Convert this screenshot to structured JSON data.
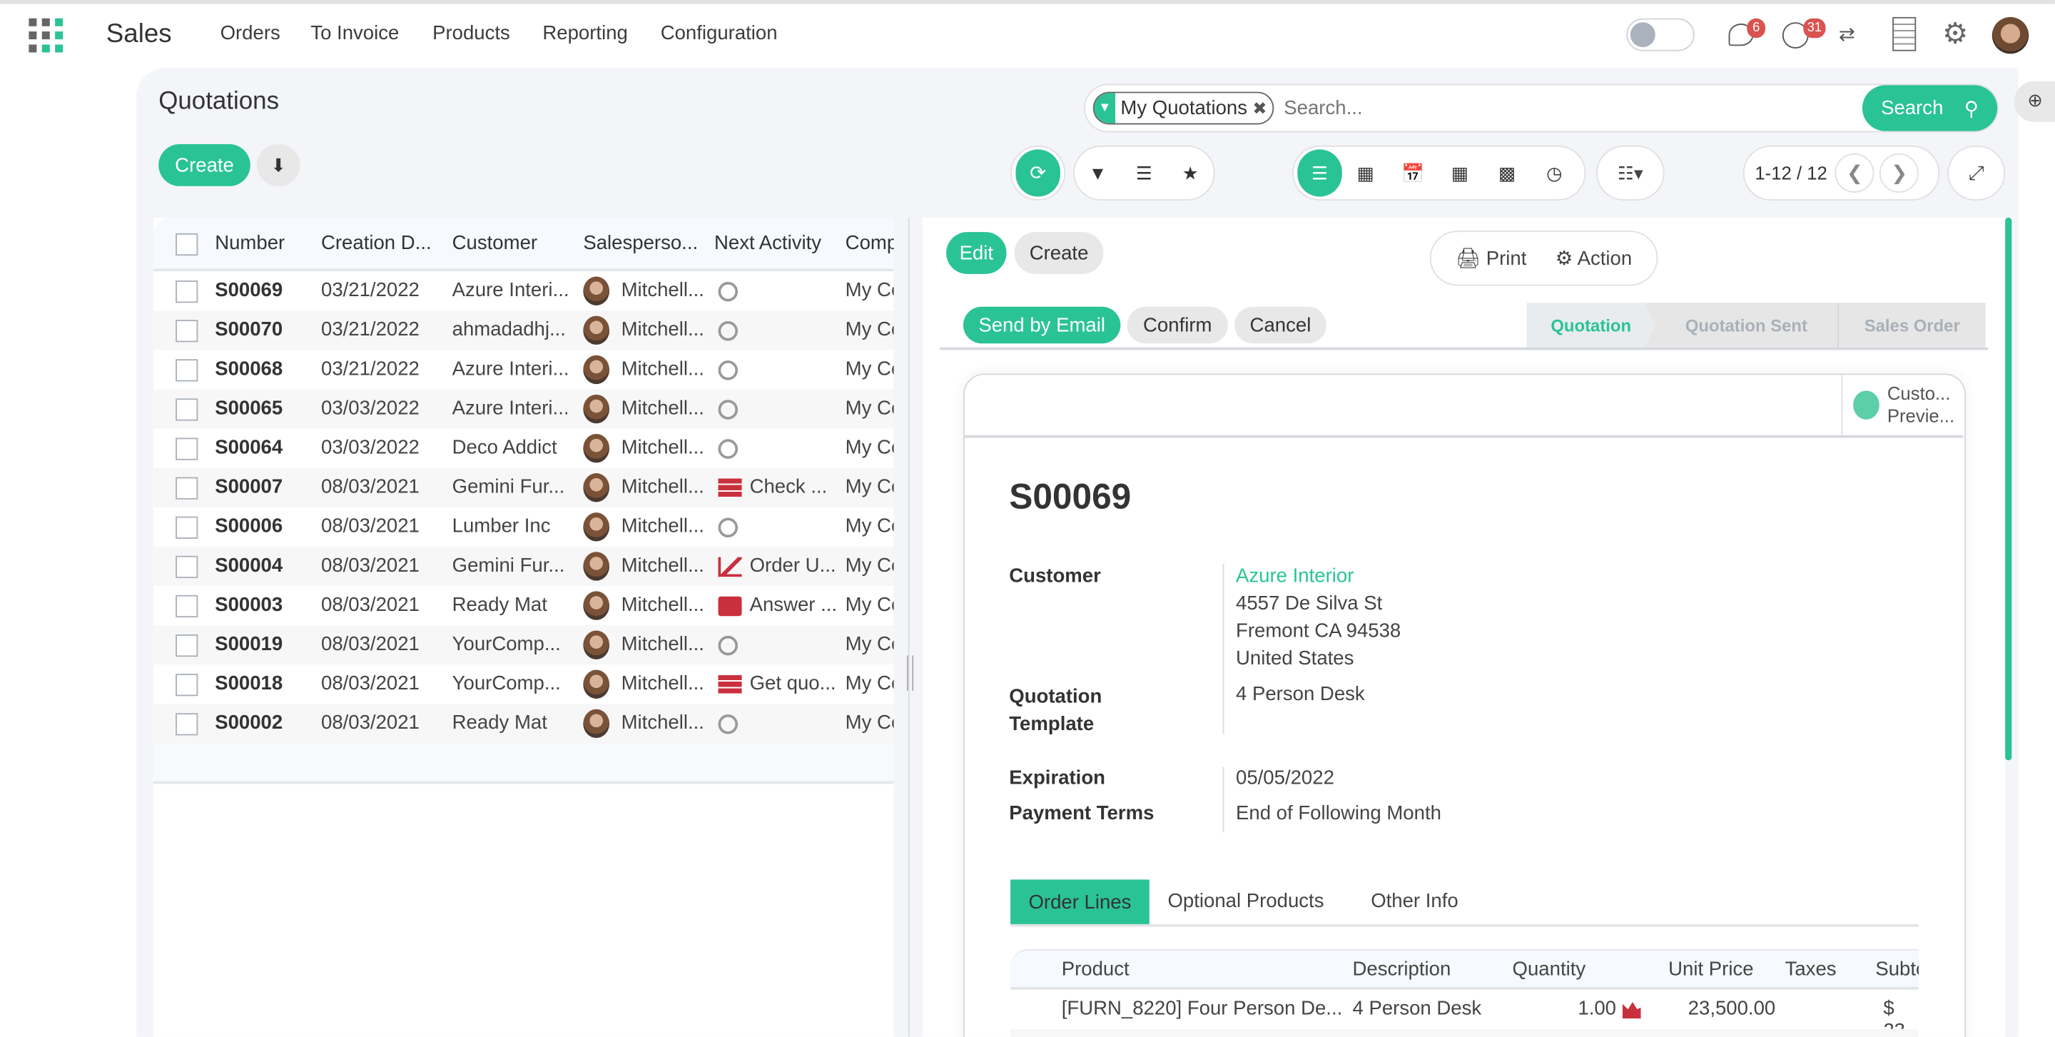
{
  "navbar": {
    "app_name": "Sales",
    "menu": [
      "Orders",
      "To Invoice",
      "Products",
      "Reporting",
      "Configuration"
    ],
    "messages_badge": "6",
    "activities_badge": "31"
  },
  "control_panel": {
    "title": "Quotations",
    "create_label": "Create",
    "search": {
      "facet": "My Quotations",
      "placeholder": "Search...",
      "button": "Search"
    },
    "pager": "1-12 / 12"
  },
  "list": {
    "columns": [
      "Number",
      "Creation D...",
      "Customer",
      "Salesperso...",
      "Next Activity",
      "Comp"
    ],
    "rows": [
      {
        "number": "S00069",
        "date": "03/21/2022",
        "customer": "Azure Interi...",
        "salesperson": "Mitchell...",
        "activity": "",
        "activity_icon": "clock",
        "company": "My Co"
      },
      {
        "number": "S00070",
        "date": "03/21/2022",
        "customer": "ahmadadhj...",
        "salesperson": "Mitchell...",
        "activity": "",
        "activity_icon": "clock",
        "company": "My Co"
      },
      {
        "number": "S00068",
        "date": "03/21/2022",
        "customer": "Azure Interi...",
        "salesperson": "Mitchell...",
        "activity": "",
        "activity_icon": "clock",
        "company": "My Co"
      },
      {
        "number": "S00065",
        "date": "03/03/2022",
        "customer": "Azure Interi...",
        "salesperson": "Mitchell...",
        "activity": "",
        "activity_icon": "clock",
        "company": "My Co"
      },
      {
        "number": "S00064",
        "date": "03/03/2022",
        "customer": "Deco Addict",
        "salesperson": "Mitchell...",
        "activity": "",
        "activity_icon": "clock",
        "company": "My Co"
      },
      {
        "number": "S00007",
        "date": "08/03/2021",
        "customer": "Gemini Fur...",
        "salesperson": "Mitchell...",
        "activity": "Check ...",
        "activity_icon": "tasks",
        "company": "My Co"
      },
      {
        "number": "S00006",
        "date": "08/03/2021",
        "customer": "Lumber Inc",
        "salesperson": "Mitchell...",
        "activity": "",
        "activity_icon": "clock",
        "company": "My Co"
      },
      {
        "number": "S00004",
        "date": "08/03/2021",
        "customer": "Gemini Fur...",
        "salesperson": "Mitchell...",
        "activity": "Order U...",
        "activity_icon": "chart",
        "company": "My Co"
      },
      {
        "number": "S00003",
        "date": "08/03/2021",
        "customer": "Ready Mat",
        "salesperson": "Mitchell...",
        "activity": "Answer ...",
        "activity_icon": "envelope",
        "company": "My Co"
      },
      {
        "number": "S00019",
        "date": "08/03/2021",
        "customer": "YourComp...",
        "salesperson": "Mitchell...",
        "activity": "",
        "activity_icon": "clock",
        "company": "My Co"
      },
      {
        "number": "S00018",
        "date": "08/03/2021",
        "customer": "YourComp...",
        "salesperson": "Mitchell...",
        "activity": "Get quo...",
        "activity_icon": "tasks",
        "company": "My Co"
      },
      {
        "number": "S00002",
        "date": "08/03/2021",
        "customer": "Ready Mat",
        "salesperson": "Mitchell...",
        "activity": "",
        "activity_icon": "clock",
        "company": "My Co"
      }
    ]
  },
  "form": {
    "edit": "Edit",
    "create": "Create",
    "print": "Print",
    "action": "Action",
    "send_email": "Send by Email",
    "confirm": "Confirm",
    "cancel": "Cancel",
    "statuses": [
      "Quotation",
      "Quotation Sent",
      "Sales Order"
    ],
    "active_status": "Quotation",
    "preview_line1": "Custo...",
    "preview_line2": "Previe...",
    "name": "S00069",
    "customer_label": "Customer",
    "customer": "Azure Interior",
    "address": [
      "4557 De Silva St",
      "Fremont CA 94538",
      "United States"
    ],
    "template_label1": "Quotation",
    "template_label2": "Template",
    "template": "4 Person Desk",
    "expiration_label": "Expiration",
    "expiration": "05/05/2022",
    "terms_label": "Payment Terms",
    "terms": "End of Following Month",
    "tabs": [
      "Order Lines",
      "Optional Products",
      "Other Info"
    ],
    "lines_columns": [
      "Product",
      "Description",
      "Quantity",
      "Unit Price",
      "Taxes",
      "Subto"
    ],
    "line": {
      "product": "[FURN_8220] Four Person De...",
      "description": "4 Person Desk",
      "quantity": "1.00",
      "unit_price": "23,500.00",
      "subtotal": "$ 23"
    }
  },
  "colors": {
    "accent": "#2ac396",
    "danger": "#c9303d",
    "badge": "#d9534f"
  }
}
